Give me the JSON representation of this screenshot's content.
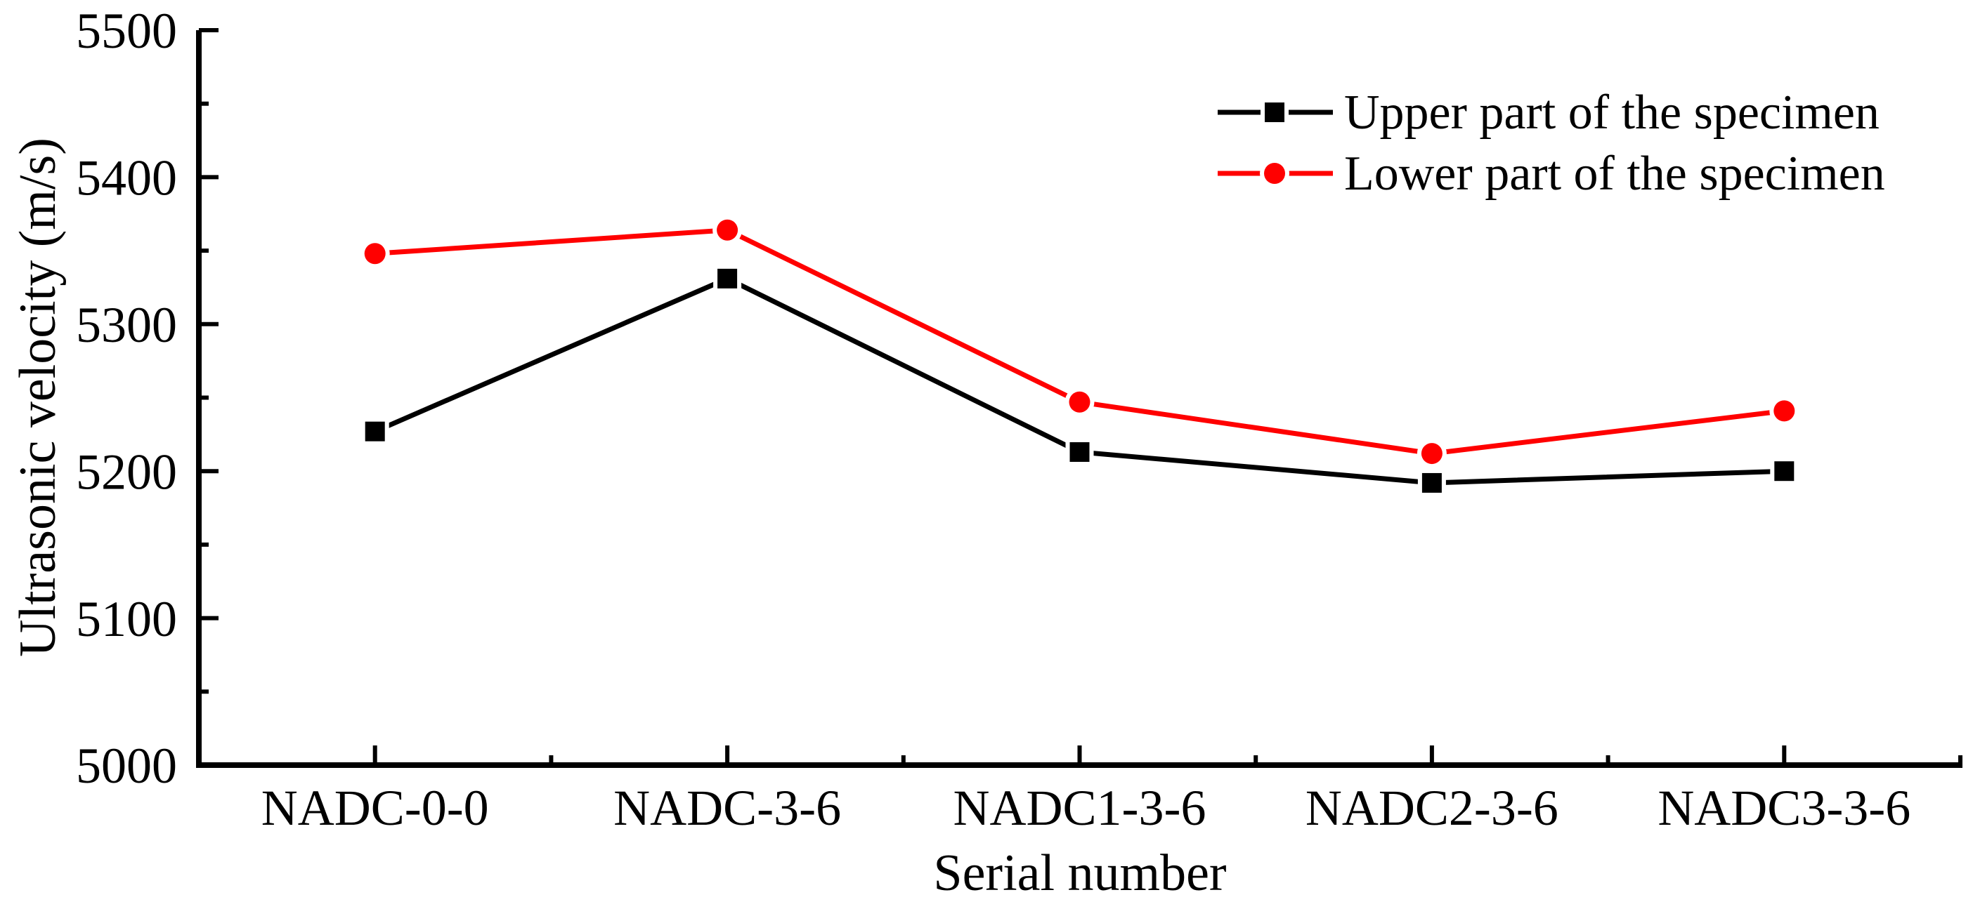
{
  "chart_data": {
    "type": "line",
    "title": "",
    "xlabel": "Serial number",
    "ylabel": "Ultrasonic velocity (m/s)",
    "categories": [
      "NADC-0-0",
      "NADC-3-6",
      "NADC1-3-6",
      "NADC2-3-6",
      "NADC3-3-6"
    ],
    "series": [
      {
        "name": "Upper part of the specimen",
        "values": [
          5227,
          5331,
          5213,
          5192,
          5200
        ],
        "color": "#000000",
        "marker": "square"
      },
      {
        "name": "Lower part of the specimen",
        "values": [
          5348,
          5364,
          5247,
          5212,
          5241
        ],
        "color": "#FF0000",
        "marker": "circle"
      }
    ],
    "ylim": [
      5000,
      5500
    ],
    "yticks": [
      5000,
      5100,
      5200,
      5300,
      5400,
      5500
    ],
    "y_minor_step": 50,
    "grid": false,
    "legend_position": "top-right-inside",
    "axis_color": "#000000",
    "background": "#FFFFFF"
  }
}
